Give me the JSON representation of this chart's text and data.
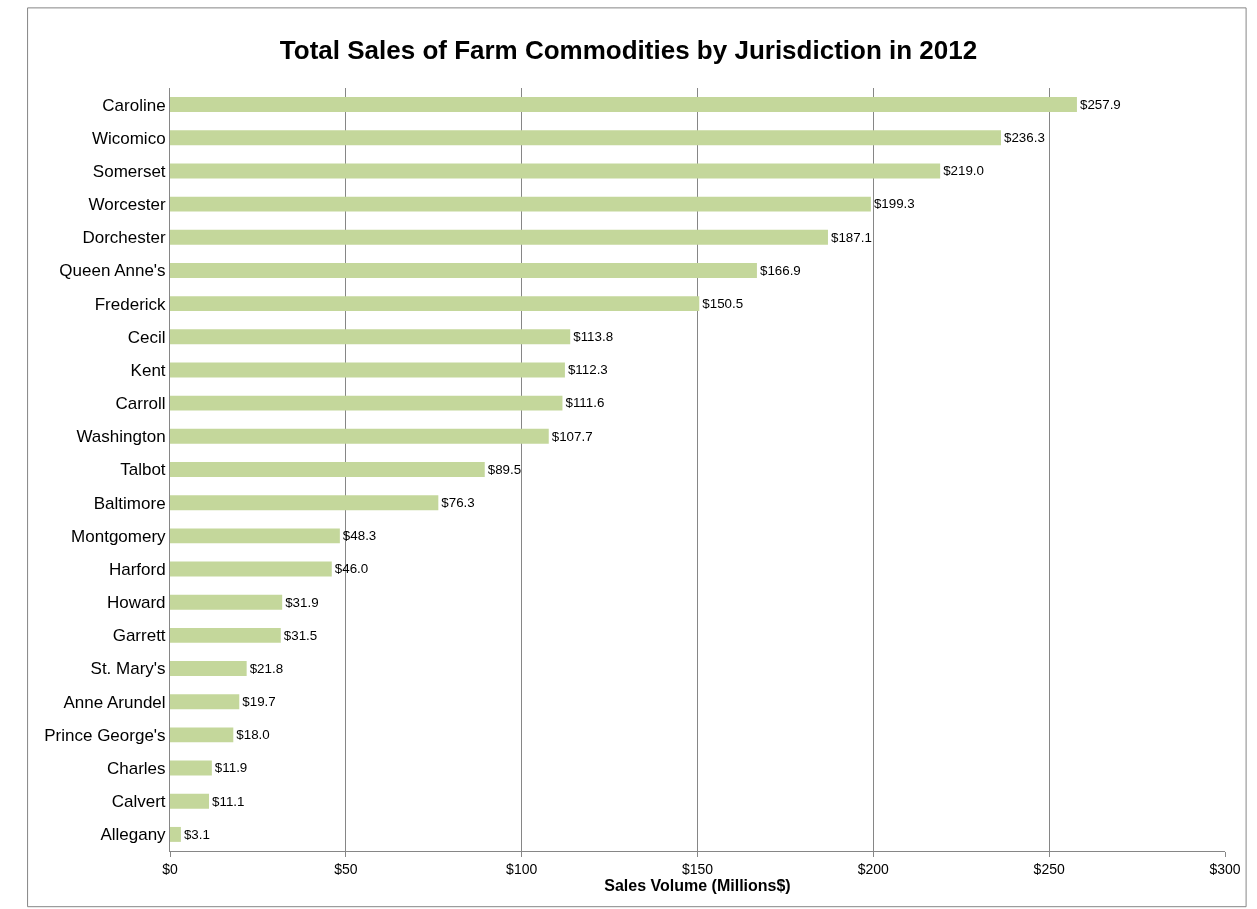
{
  "chart_data": {
    "type": "bar",
    "orientation": "horizontal",
    "title": "Total Sales of Farm Commodities by Jurisdiction in 2012",
    "xlabel": "Sales Volume (Millions$)",
    "categories": [
      "Caroline",
      "Wicomico",
      "Somerset",
      "Worcester",
      "Dorchester",
      "Queen Anne's",
      "Frederick",
      "Cecil",
      "Kent",
      "Carroll",
      "Washington",
      "Talbot",
      "Baltimore",
      "Montgomery",
      "Harford",
      "Howard",
      "Garrett",
      "St. Mary's",
      "Anne Arundel",
      "Prince George's",
      "Charles",
      "Calvert",
      "Allegany"
    ],
    "values": [
      257.9,
      236.3,
      219.0,
      199.3,
      187.1,
      166.9,
      150.5,
      113.8,
      112.3,
      111.6,
      107.7,
      89.5,
      76.3,
      48.3,
      46.0,
      31.9,
      31.5,
      21.8,
      19.7,
      18.0,
      11.9,
      11.1,
      3.1
    ],
    "value_labels": [
      "$257.9",
      "$236.3",
      "$219.0",
      "$199.3",
      "$187.1",
      "$166.9",
      "$150.5",
      "$113.8",
      "$112.3",
      "$111.6",
      "$107.7",
      "$89.5",
      "$76.3",
      "$48.3",
      "$46.0",
      "$31.9",
      "$31.5",
      "$21.8",
      "$19.7",
      "$18.0",
      "$11.9",
      "$11.1",
      "$3.1"
    ],
    "color": "#c4d79b",
    "xlim": [
      0,
      300
    ],
    "xticks": [
      {
        "value": 0,
        "label": "$0"
      },
      {
        "value": 50,
        "label": "$50"
      },
      {
        "value": 100,
        "label": "$100"
      },
      {
        "value": 150,
        "label": "$150"
      },
      {
        "value": 200,
        "label": "$200"
      },
      {
        "value": 250,
        "label": "$250"
      },
      {
        "value": 300,
        "label": "$300"
      }
    ],
    "grid": "x"
  }
}
